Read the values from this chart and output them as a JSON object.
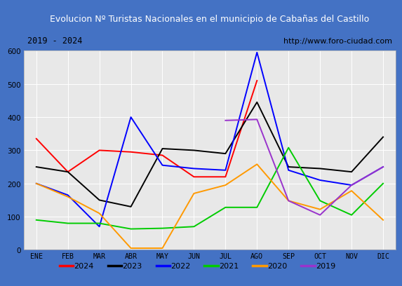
{
  "title": "Evolucion Nº Turistas Nacionales en el municipio de Cabañas del Castillo",
  "subtitle_left": "2019 - 2024",
  "subtitle_right": "http://www.foro-ciudad.com",
  "x_labels": [
    "ENE",
    "FEB",
    "MAR",
    "ABR",
    "MAY",
    "JUN",
    "JUL",
    "AGO",
    "SEP",
    "OCT",
    "NOV",
    "DIC"
  ],
  "ylim": [
    0,
    600
  ],
  "yticks": [
    0,
    100,
    200,
    300,
    400,
    500,
    600
  ],
  "series": {
    "2024": {
      "color": "#ff0000",
      "values": [
        335,
        235,
        300,
        295,
        285,
        220,
        220,
        510,
        null,
        null,
        null,
        null
      ]
    },
    "2023": {
      "color": "#000000",
      "values": [
        250,
        235,
        150,
        130,
        305,
        300,
        290,
        445,
        250,
        245,
        235,
        340
      ]
    },
    "2022": {
      "color": "#0000ff",
      "values": [
        200,
        165,
        70,
        400,
        255,
        245,
        240,
        595,
        240,
        210,
        195,
        250
      ]
    },
    "2021": {
      "color": "#00cc00",
      "values": [
        90,
        80,
        80,
        63,
        65,
        70,
        128,
        128,
        308,
        148,
        105,
        200
      ]
    },
    "2020": {
      "color": "#ff9900",
      "values": [
        200,
        160,
        110,
        5,
        5,
        170,
        195,
        258,
        148,
        122,
        178,
        90
      ]
    },
    "2019": {
      "color": "#9933cc",
      "values": [
        null,
        null,
        null,
        null,
        null,
        null,
        390,
        393,
        148,
        105,
        195,
        250
      ]
    }
  },
  "title_bg_color": "#4472c4",
  "title_text_color": "#ffffff",
  "plot_bg_color": "#e8e8e8",
  "grid_color": "#ffffff",
  "outer_bg_color": "#4472c4",
  "subtitle_bg_color": "#f0f0f0",
  "legend_order": [
    "2024",
    "2023",
    "2022",
    "2021",
    "2020",
    "2019"
  ]
}
